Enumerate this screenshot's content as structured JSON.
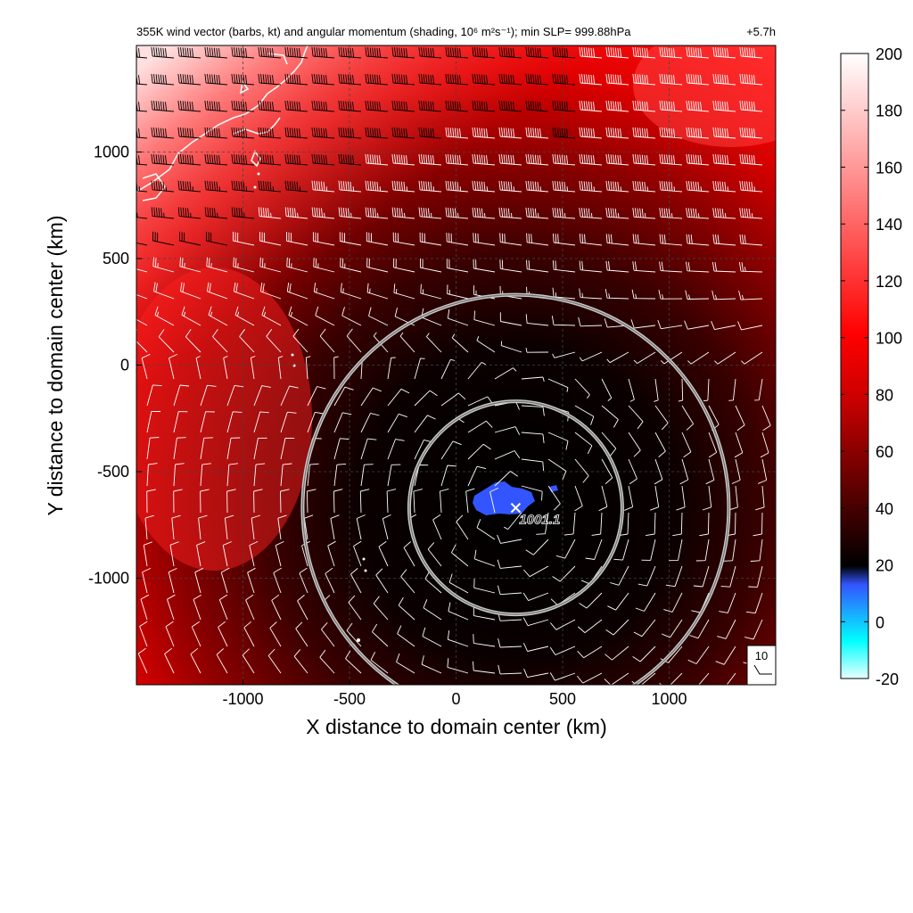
{
  "chart_data": {
    "type": "heatmap",
    "title": "355K wind vector (barbs, kt) and angular momentum (shading, 10⁶ m²s⁻¹); min SLP= 999.88hPa",
    "time_label": "+5.7h",
    "xlabel": "X distance to domain center (km)",
    "ylabel": "Y distance to domain center (km)",
    "xlim": [
      -1500,
      1500
    ],
    "ylim": [
      -1500,
      1500
    ],
    "x_ticks": [
      -1000,
      -500,
      0,
      500,
      1000
    ],
    "y_ticks": [
      -1000,
      -500,
      0,
      500,
      1000
    ],
    "grid": true,
    "colorbar": {
      "range": [
        -20,
        200
      ],
      "ticks": [
        200,
        180,
        160,
        140,
        120,
        100,
        80,
        60,
        40,
        20,
        0,
        -20
      ],
      "colors": [
        "#00ffff",
        "#4466ff",
        "#000000",
        "#ff0000",
        "#ffffff"
      ]
    },
    "storm_center": {
      "x": 280,
      "y": -670,
      "label": "1001.1"
    },
    "circles_km": [
      {
        "cx": 280,
        "cy": -670,
        "r": 500
      },
      {
        "cx": 280,
        "cy": -670,
        "r": 1000
      }
    ],
    "reference_barb_label": "10"
  }
}
